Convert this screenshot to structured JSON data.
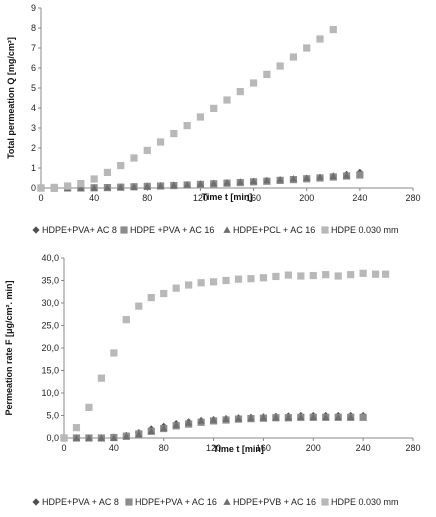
{
  "chart_data": [
    {
      "type": "scatter",
      "xlabel": "Time t [min]",
      "ylabel": "Total permeation Q [mg/cm²]",
      "xlim": [
        0,
        280
      ],
      "ylim": [
        0,
        9
      ],
      "xticks": [
        "0",
        "40",
        "80",
        "120",
        "160",
        "200",
        "240",
        "280"
      ],
      "yticks": [
        "0",
        "1",
        "2",
        "3",
        "4",
        "5",
        "6",
        "7",
        "8",
        "9"
      ],
      "grid": false,
      "legend_position": "bottom",
      "series": [
        {
          "name": "HDPE+PVA+ AC 8",
          "marker": "diamond",
          "color": "#505050",
          "points": [
            [
              0,
              0
            ],
            [
              10,
              0
            ],
            [
              20,
              0
            ],
            [
              30,
              0
            ],
            [
              40,
              0.02
            ],
            [
              50,
              0.03
            ],
            [
              60,
              0.05
            ],
            [
              70,
              0.07
            ],
            [
              80,
              0.1
            ],
            [
              90,
              0.12
            ],
            [
              100,
              0.15
            ],
            [
              110,
              0.17
            ],
            [
              120,
              0.2
            ],
            [
              130,
              0.23
            ],
            [
              140,
              0.26
            ],
            [
              150,
              0.3
            ],
            [
              160,
              0.33
            ],
            [
              170,
              0.37
            ],
            [
              180,
              0.41
            ],
            [
              190,
              0.45
            ],
            [
              200,
              0.49
            ],
            [
              210,
              0.54
            ],
            [
              220,
              0.6
            ],
            [
              230,
              0.68
            ],
            [
              240,
              0.78
            ]
          ]
        },
        {
          "name": "HDPE +PVA + AC 16",
          "marker": "square",
          "color": "#8c8c8c",
          "points": [
            [
              0,
              0
            ],
            [
              10,
              0
            ],
            [
              20,
              0
            ],
            [
              30,
              0
            ],
            [
              40,
              0.01
            ],
            [
              50,
              0.02
            ],
            [
              60,
              0.04
            ],
            [
              70,
              0.06
            ],
            [
              80,
              0.08
            ],
            [
              90,
              0.1
            ],
            [
              100,
              0.12
            ],
            [
              110,
              0.15
            ],
            [
              120,
              0.18
            ],
            [
              130,
              0.21
            ],
            [
              140,
              0.24
            ],
            [
              150,
              0.27
            ],
            [
              160,
              0.31
            ],
            [
              170,
              0.34
            ],
            [
              180,
              0.38
            ],
            [
              190,
              0.42
            ],
            [
              200,
              0.46
            ],
            [
              210,
              0.5
            ],
            [
              220,
              0.55
            ],
            [
              230,
              0.6
            ],
            [
              240,
              0.65
            ]
          ]
        },
        {
          "name": "HDPE+PCL + AC 16",
          "marker": "triangle",
          "color": "#6e6e6e",
          "points": [
            [
              0,
              0
            ],
            [
              10,
              0
            ],
            [
              20,
              0
            ],
            [
              30,
              0
            ],
            [
              40,
              0
            ],
            [
              50,
              0.02
            ],
            [
              60,
              0.03
            ],
            [
              70,
              0.05
            ],
            [
              80,
              0.07
            ],
            [
              90,
              0.1
            ],
            [
              100,
              0.13
            ],
            [
              110,
              0.16
            ],
            [
              120,
              0.2
            ],
            [
              130,
              0.23
            ],
            [
              140,
              0.27
            ],
            [
              150,
              0.3
            ],
            [
              160,
              0.34
            ],
            [
              170,
              0.38
            ],
            [
              180,
              0.42
            ],
            [
              190,
              0.46
            ],
            [
              200,
              0.5
            ],
            [
              210,
              0.54
            ],
            [
              220,
              0.58
            ],
            [
              230,
              0.62
            ]
          ]
        },
        {
          "name": "HDPE 0.030 mm",
          "marker": "square",
          "color": "#b8b8b8",
          "points": [
            [
              0,
              0
            ],
            [
              10,
              0.03
            ],
            [
              20,
              0.1
            ],
            [
              30,
              0.22
            ],
            [
              40,
              0.45
            ],
            [
              50,
              0.78
            ],
            [
              60,
              1.12
            ],
            [
              70,
              1.5
            ],
            [
              80,
              1.88
            ],
            [
              90,
              2.3
            ],
            [
              100,
              2.72
            ],
            [
              110,
              3.12
            ],
            [
              120,
              3.55
            ],
            [
              130,
              3.98
            ],
            [
              140,
              4.4
            ],
            [
              150,
              4.82
            ],
            [
              160,
              5.25
            ],
            [
              170,
              5.68
            ],
            [
              180,
              6.1
            ],
            [
              190,
              6.55
            ],
            [
              200,
              7.0
            ],
            [
              210,
              7.45
            ],
            [
              220,
              7.92
            ]
          ]
        }
      ]
    },
    {
      "type": "scatter",
      "xlabel": "Time t [min]",
      "ylabel": "Permeation rate F [μg/cm². min]",
      "xlim": [
        0,
        280
      ],
      "ylim": [
        0,
        40
      ],
      "xticks": [
        "0",
        "40",
        "80",
        "120",
        "160",
        "200",
        "240",
        "280"
      ],
      "yticks": [
        "0,0",
        "5,0",
        "10,0",
        "15,0",
        "20,0",
        "25,0",
        "30,0",
        "35,0",
        "40,0"
      ],
      "grid": false,
      "legend_position": "bottom",
      "series": [
        {
          "name": "HDPE+PVA + AC 8",
          "marker": "diamond",
          "color": "#505050",
          "points": [
            [
              0,
              0
            ],
            [
              10,
              0
            ],
            [
              20,
              0
            ],
            [
              30,
              0
            ],
            [
              40,
              0.2
            ],
            [
              50,
              0.6
            ],
            [
              60,
              1.2
            ],
            [
              70,
              2.0
            ],
            [
              80,
              2.6
            ],
            [
              90,
              3.2
            ],
            [
              100,
              3.6
            ],
            [
              110,
              3.9
            ],
            [
              120,
              4.1
            ],
            [
              130,
              4.3
            ],
            [
              140,
              4.5
            ],
            [
              150,
              4.6
            ],
            [
              160,
              4.7
            ],
            [
              170,
              4.8
            ],
            [
              180,
              4.9
            ],
            [
              190,
              5.0
            ],
            [
              200,
              5.0
            ],
            [
              210,
              5.0
            ],
            [
              220,
              5.0
            ],
            [
              230,
              5.0
            ],
            [
              240,
              5.0
            ]
          ]
        },
        {
          "name": "HDPE+PVA + AC 16",
          "marker": "square",
          "color": "#8c8c8c",
          "points": [
            [
              0,
              0
            ],
            [
              10,
              0
            ],
            [
              20,
              0
            ],
            [
              30,
              0
            ],
            [
              40,
              0.1
            ],
            [
              50,
              0.4
            ],
            [
              60,
              0.9
            ],
            [
              70,
              1.5
            ],
            [
              80,
              2.1
            ],
            [
              90,
              2.7
            ],
            [
              100,
              3.1
            ],
            [
              110,
              3.5
            ],
            [
              120,
              3.8
            ],
            [
              130,
              4.0
            ],
            [
              140,
              4.2
            ],
            [
              150,
              4.3
            ],
            [
              160,
              4.4
            ],
            [
              170,
              4.5
            ],
            [
              180,
              4.5
            ],
            [
              190,
              4.6
            ],
            [
              200,
              4.6
            ],
            [
              210,
              4.6
            ],
            [
              220,
              4.6
            ],
            [
              230,
              4.6
            ],
            [
              240,
              4.6
            ]
          ]
        },
        {
          "name": "HDPE+PVB + AC 16",
          "marker": "triangle",
          "color": "#6e6e6e",
          "points": [
            [
              0,
              0
            ],
            [
              10,
              0
            ],
            [
              20,
              0
            ],
            [
              30,
              0
            ],
            [
              40,
              0
            ],
            [
              50,
              0.3
            ],
            [
              60,
              0.8
            ],
            [
              70,
              1.5
            ],
            [
              80,
              2.2
            ],
            [
              90,
              2.9
            ],
            [
              100,
              3.4
            ],
            [
              110,
              3.8
            ],
            [
              120,
              4.0
            ],
            [
              130,
              4.2
            ],
            [
              140,
              4.3
            ],
            [
              150,
              4.4
            ],
            [
              160,
              4.5
            ],
            [
              170,
              4.5
            ],
            [
              180,
              4.5
            ],
            [
              190,
              4.6
            ],
            [
              200,
              4.6
            ],
            [
              210,
              4.6
            ],
            [
              220,
              4.6
            ],
            [
              230,
              4.6
            ]
          ]
        },
        {
          "name": "HDPE 0.030 mm",
          "marker": "square",
          "color": "#b8b8b8",
          "points": [
            [
              0,
              0
            ],
            [
              10,
              2.3
            ],
            [
              20,
              6.8
            ],
            [
              30,
              13.3
            ],
            [
              40,
              18.9
            ],
            [
              50,
              26.3
            ],
            [
              60,
              29.3
            ],
            [
              70,
              31.2
            ],
            [
              80,
              32.1
            ],
            [
              90,
              33.3
            ],
            [
              100,
              34.0
            ],
            [
              110,
              34.5
            ],
            [
              120,
              34.7
            ],
            [
              130,
              35.0
            ],
            [
              140,
              35.3
            ],
            [
              150,
              35.4
            ],
            [
              160,
              35.6
            ],
            [
              170,
              35.9
            ],
            [
              180,
              36.2
            ],
            [
              190,
              36.0
            ],
            [
              200,
              36.1
            ],
            [
              210,
              36.3
            ],
            [
              220,
              36.0
            ],
            [
              230,
              36.3
            ],
            [
              240,
              36.6
            ],
            [
              250,
              36.4
            ],
            [
              258,
              36.4
            ]
          ]
        }
      ]
    }
  ]
}
